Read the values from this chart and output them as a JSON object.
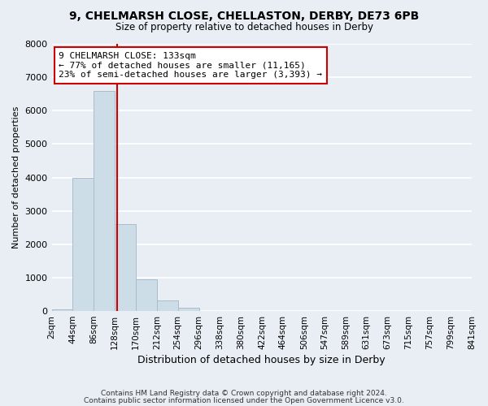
{
  "title": "9, CHELMARSH CLOSE, CHELLASTON, DERBY, DE73 6PB",
  "subtitle": "Size of property relative to detached houses in Derby",
  "xlabel": "Distribution of detached houses by size in Derby",
  "ylabel": "Number of detached properties",
  "bar_color": "#ccdde8",
  "bar_edge_color": "#aabbcc",
  "background_color": "#e8eef4",
  "grid_color": "#ffffff",
  "annotation_box_color": "#cc0000",
  "annotation_line_color": "#cc0000",
  "bins": [
    2,
    44,
    86,
    128,
    170,
    212,
    254,
    296,
    338,
    380,
    422,
    464,
    506,
    547,
    589,
    631,
    673,
    715,
    757,
    799,
    841
  ],
  "bin_labels": [
    "2sqm",
    "44sqm",
    "86sqm",
    "128sqm",
    "170sqm",
    "212sqm",
    "254sqm",
    "296sqm",
    "338sqm",
    "380sqm",
    "422sqm",
    "464sqm",
    "506sqm",
    "547sqm",
    "589sqm",
    "631sqm",
    "673sqm",
    "715sqm",
    "757sqm",
    "799sqm",
    "841sqm"
  ],
  "values": [
    60,
    3980,
    6580,
    2600,
    960,
    320,
    110,
    0,
    0,
    0,
    0,
    0,
    0,
    0,
    0,
    0,
    0,
    0,
    0,
    0
  ],
  "ylim": [
    0,
    8000
  ],
  "yticks": [
    0,
    1000,
    2000,
    3000,
    4000,
    5000,
    6000,
    7000,
    8000
  ],
  "property_size": 133,
  "annotation_title": "9 CHELMARSH CLOSE: 133sqm",
  "annotation_line1": "← 77% of detached houses are smaller (11,165)",
  "annotation_line2": "23% of semi-detached houses are larger (3,393) →",
  "vline_x": 133,
  "footer_line1": "Contains HM Land Registry data © Crown copyright and database right 2024.",
  "footer_line2": "Contains public sector information licensed under the Open Government Licence v3.0."
}
